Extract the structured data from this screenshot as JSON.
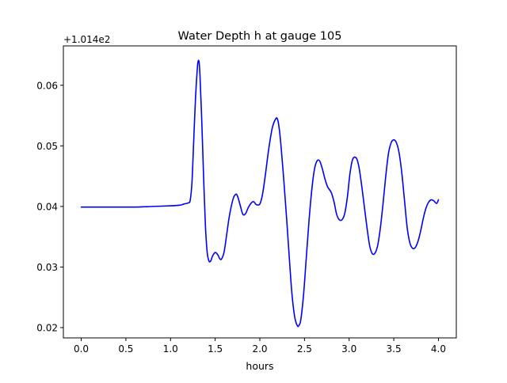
{
  "chart_data": {
    "type": "line",
    "title": "Water Depth h at gauge 105",
    "xlabel": "hours",
    "ylabel": "",
    "y_offset_label": "+1.014e2",
    "xlim": [
      -0.2,
      4.2
    ],
    "ylim": [
      0.0183,
      0.0665
    ],
    "xticks": [
      0.0,
      0.5,
      1.0,
      1.5,
      2.0,
      2.5,
      3.0,
      3.5,
      4.0
    ],
    "xtick_labels": [
      "0.0",
      "0.5",
      "1.0",
      "1.5",
      "2.0",
      "2.5",
      "3.0",
      "3.5",
      "4.0"
    ],
    "yticks": [
      0.02,
      0.03,
      0.04,
      0.05,
      0.06
    ],
    "ytick_labels": [
      "0.02",
      "0.03",
      "0.04",
      "0.05",
      "0.06"
    ],
    "grid": false,
    "series": [
      {
        "color": "#0000ff",
        "x": [
          0.0,
          0.2,
          0.4,
          0.6,
          0.8,
          1.0,
          1.1,
          1.15,
          1.2,
          1.22,
          1.24,
          1.26,
          1.28,
          1.3,
          1.31,
          1.32,
          1.33,
          1.35,
          1.37,
          1.39,
          1.41,
          1.43,
          1.45,
          1.47,
          1.5,
          1.53,
          1.55,
          1.57,
          1.6,
          1.63,
          1.66,
          1.7,
          1.73,
          1.75,
          1.78,
          1.81,
          1.84,
          1.87,
          1.9,
          1.93,
          1.96,
          2.0,
          2.03,
          2.06,
          2.1,
          2.14,
          2.18,
          2.2,
          2.22,
          2.24,
          2.27,
          2.3,
          2.33,
          2.36,
          2.39,
          2.42,
          2.44,
          2.46,
          2.49,
          2.52,
          2.55,
          2.58,
          2.61,
          2.64,
          2.67,
          2.7,
          2.73,
          2.76,
          2.8,
          2.83,
          2.86,
          2.89,
          2.92,
          2.95,
          2.98,
          3.01,
          3.04,
          3.08,
          3.11,
          3.14,
          3.17,
          3.2,
          3.23,
          3.26,
          3.29,
          3.32,
          3.35,
          3.38,
          3.41,
          3.44,
          3.47,
          3.5,
          3.53,
          3.56,
          3.59,
          3.62,
          3.65,
          3.68,
          3.71,
          3.74,
          3.77,
          3.8,
          3.83,
          3.86,
          3.89,
          3.92,
          3.95,
          3.98,
          4.0
        ],
        "y": [
          0.0399,
          0.0399,
          0.0399,
          0.0399,
          0.04,
          0.0401,
          0.0402,
          0.0404,
          0.0406,
          0.041,
          0.044,
          0.051,
          0.058,
          0.0628,
          0.064,
          0.0638,
          0.0615,
          0.054,
          0.045,
          0.037,
          0.0325,
          0.031,
          0.031,
          0.0318,
          0.0324,
          0.032,
          0.0314,
          0.0313,
          0.0325,
          0.0355,
          0.0385,
          0.0412,
          0.042,
          0.0417,
          0.0402,
          0.0387,
          0.0388,
          0.0398,
          0.0405,
          0.0408,
          0.0403,
          0.0404,
          0.042,
          0.045,
          0.0495,
          0.053,
          0.0545,
          0.0543,
          0.0525,
          0.0495,
          0.044,
          0.038,
          0.0315,
          0.0255,
          0.0218,
          0.0203,
          0.0204,
          0.0214,
          0.0255,
          0.0315,
          0.0375,
          0.0425,
          0.046,
          0.0475,
          0.0475,
          0.0462,
          0.0445,
          0.0432,
          0.0423,
          0.0408,
          0.0387,
          0.0378,
          0.0378,
          0.0388,
          0.0415,
          0.0455,
          0.0478,
          0.048,
          0.0465,
          0.0435,
          0.04,
          0.0365,
          0.0335,
          0.0322,
          0.0323,
          0.0336,
          0.0365,
          0.0405,
          0.045,
          0.0487,
          0.0505,
          0.051,
          0.0505,
          0.0488,
          0.0455,
          0.041,
          0.0365,
          0.034,
          0.0331,
          0.0332,
          0.0342,
          0.0359,
          0.038,
          0.0397,
          0.0407,
          0.0411,
          0.0409,
          0.0405,
          0.0411
        ]
      }
    ]
  }
}
